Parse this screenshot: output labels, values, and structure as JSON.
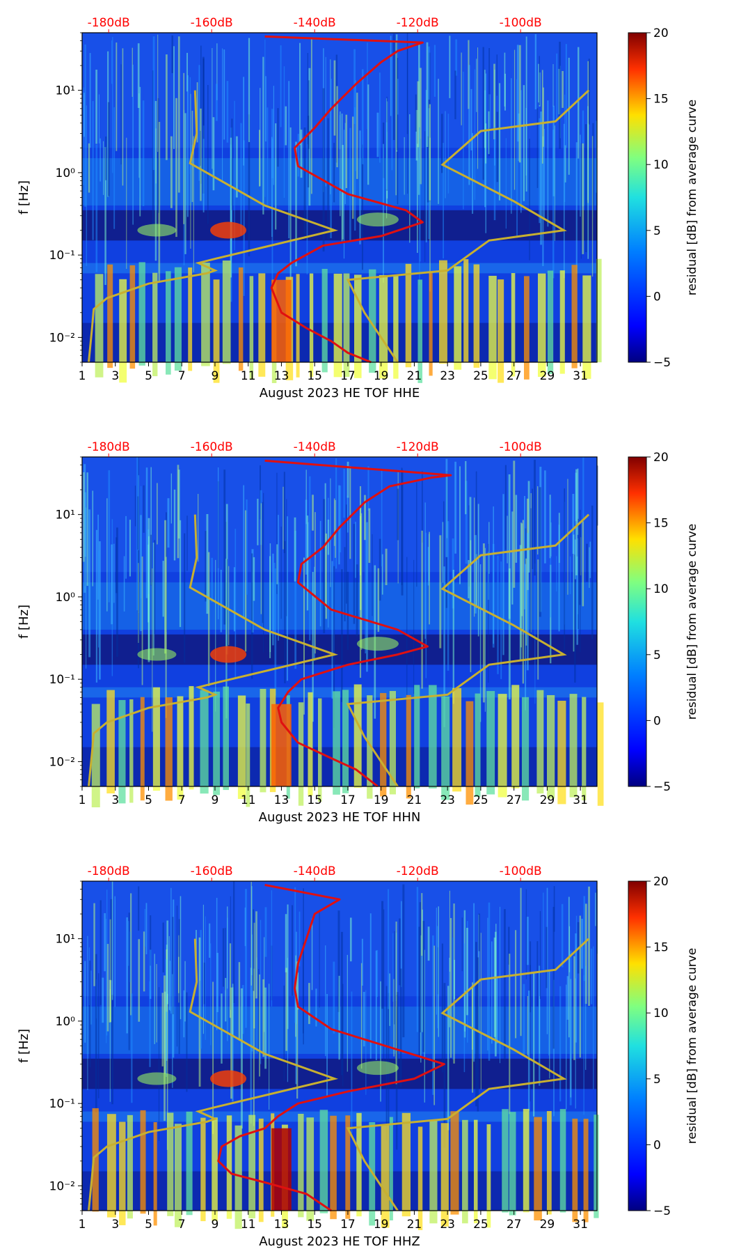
{
  "chart_data": [
    {
      "type": "heatmap",
      "title": "",
      "xlabel": "August 2023 HE TOF  HHE",
      "ylabel": "f [Hz]",
      "xlim": [
        1,
        32
      ],
      "ylim": [
        0.005,
        50
      ],
      "yscale": "log",
      "x_ticks": [
        "1",
        "3",
        "5",
        "7",
        "9",
        "11",
        "13",
        "15",
        "17",
        "19",
        "21",
        "23",
        "25",
        "27",
        "29",
        "31"
      ],
      "y_ticks": [
        "10⁻²",
        "10⁻¹",
        "10⁰",
        "10¹"
      ],
      "top_ticks": [
        "-180dB",
        "-160dB",
        "-140dB",
        "-120dB",
        "-100dB"
      ],
      "top_axis_color": "#ff0000",
      "colorbar": {
        "label": "residual [dB] from average curve",
        "min": -5,
        "max": 20,
        "ticks": [
          "−5",
          "0",
          "5",
          "10",
          "15",
          "20"
        ],
        "colormap": "jet"
      },
      "noise_models": {
        "color": "#c8b030",
        "low": [
          [
            1.4,
            0.005
          ],
          [
            1.6,
            0.013
          ],
          [
            1.7,
            0.022
          ],
          [
            2.5,
            0.03
          ],
          [
            5,
            0.045
          ],
          [
            8.5,
            0.06
          ],
          [
            9,
            0.065
          ],
          [
            8,
            0.08
          ],
          [
            9,
            0.09
          ],
          [
            16.2,
            0.2
          ],
          [
            12,
            0.4
          ],
          [
            7.5,
            1.3
          ],
          [
            7.9,
            3
          ],
          [
            7.8,
            10
          ]
        ],
        "high": [
          [
            20,
            0.005
          ],
          [
            18,
            0.02
          ],
          [
            17,
            0.05
          ],
          [
            23,
            0.065
          ],
          [
            25.5,
            0.15
          ],
          [
            30,
            0.2
          ],
          [
            27,
            0.45
          ],
          [
            22.7,
            1.25
          ],
          [
            25,
            3.2
          ],
          [
            29.5,
            4.2
          ],
          [
            31.5,
            10
          ]
        ]
      },
      "average_curve": {
        "color": "#e01010",
        "points": [
          [
            18.4,
            0.005
          ],
          [
            17,
            0.0065
          ],
          [
            16,
            0.009
          ],
          [
            14.5,
            0.013
          ],
          [
            13,
            0.02
          ],
          [
            12.4,
            0.04
          ],
          [
            12.8,
            0.06
          ],
          [
            13.6,
            0.08
          ],
          [
            15.5,
            0.13
          ],
          [
            19,
            0.17
          ],
          [
            21.5,
            0.25
          ],
          [
            20.5,
            0.35
          ],
          [
            17,
            0.55
          ],
          [
            14,
            1.2
          ],
          [
            13.8,
            2
          ],
          [
            15,
            3.5
          ],
          [
            16,
            6
          ],
          [
            17.5,
            12
          ],
          [
            19,
            22
          ],
          [
            20,
            30
          ],
          [
            21.5,
            38
          ],
          [
            12,
            45
          ]
        ]
      }
    },
    {
      "type": "heatmap",
      "title": "",
      "xlabel": "August 2023 HE TOF  HHN",
      "ylabel": "f [Hz]",
      "xlim": [
        1,
        32
      ],
      "ylim": [
        0.005,
        50
      ],
      "yscale": "log",
      "x_ticks": [
        "1",
        "3",
        "5",
        "7",
        "9",
        "11",
        "13",
        "15",
        "17",
        "19",
        "21",
        "23",
        "25",
        "27",
        "29",
        "31"
      ],
      "y_ticks": [
        "10⁻²",
        "10⁻¹",
        "10⁰",
        "10¹"
      ],
      "top_ticks": [
        "-180dB",
        "-160dB",
        "-140dB",
        "-120dB",
        "-100dB"
      ],
      "top_axis_color": "#ff0000",
      "colorbar": {
        "label": "residual [dB] from average curve",
        "min": -5,
        "max": 20,
        "ticks": [
          "−5",
          "0",
          "5",
          "10",
          "15",
          "20"
        ],
        "colormap": "jet"
      },
      "noise_models": {
        "color": "#c8b030",
        "low": [
          [
            1.4,
            0.005
          ],
          [
            1.6,
            0.013
          ],
          [
            1.7,
            0.022
          ],
          [
            2.5,
            0.03
          ],
          [
            5,
            0.045
          ],
          [
            8.5,
            0.06
          ],
          [
            9,
            0.065
          ],
          [
            8,
            0.08
          ],
          [
            9,
            0.09
          ],
          [
            16.2,
            0.2
          ],
          [
            12,
            0.4
          ],
          [
            7.5,
            1.3
          ],
          [
            7.9,
            3
          ],
          [
            7.8,
            10
          ]
        ],
        "high": [
          [
            20,
            0.005
          ],
          [
            18,
            0.02
          ],
          [
            17,
            0.05
          ],
          [
            23,
            0.065
          ],
          [
            25.5,
            0.15
          ],
          [
            30,
            0.2
          ],
          [
            27,
            0.45
          ],
          [
            22.7,
            1.25
          ],
          [
            25,
            3.2
          ],
          [
            29.5,
            4.2
          ],
          [
            31.5,
            10
          ]
        ]
      },
      "average_curve": {
        "color": "#e01010",
        "points": [
          [
            18.8,
            0.005
          ],
          [
            17.5,
            0.008
          ],
          [
            16,
            0.011
          ],
          [
            14,
            0.017
          ],
          [
            13,
            0.03
          ],
          [
            12.8,
            0.045
          ],
          [
            13.4,
            0.07
          ],
          [
            14.2,
            0.1
          ],
          [
            17,
            0.15
          ],
          [
            20,
            0.2
          ],
          [
            21.8,
            0.25
          ],
          [
            20,
            0.4
          ],
          [
            16,
            0.7
          ],
          [
            14,
            1.5
          ],
          [
            14.2,
            2.5
          ],
          [
            15.5,
            4
          ],
          [
            16.5,
            7
          ],
          [
            18,
            14
          ],
          [
            19.5,
            22
          ],
          [
            22,
            28
          ],
          [
            23.2,
            30
          ],
          [
            12,
            45
          ]
        ]
      }
    },
    {
      "type": "heatmap",
      "title": "",
      "xlabel": "August 2023 HE TOF  HHZ",
      "ylabel": "f [Hz]",
      "xlim": [
        1,
        32
      ],
      "ylim": [
        0.005,
        50
      ],
      "yscale": "log",
      "x_ticks": [
        "1",
        "3",
        "5",
        "7",
        "9",
        "11",
        "13",
        "15",
        "17",
        "19",
        "21",
        "23",
        "25",
        "27",
        "29",
        "31"
      ],
      "y_ticks": [
        "10⁻²",
        "10⁻¹",
        "10⁰",
        "10¹"
      ],
      "top_ticks": [
        "-180dB",
        "-160dB",
        "-140dB",
        "-120dB",
        "-100dB"
      ],
      "top_axis_color": "#ff0000",
      "colorbar": {
        "label": "residual [dB] from average curve",
        "min": -5,
        "max": 20,
        "ticks": [
          "−5",
          "0",
          "5",
          "10",
          "15",
          "20"
        ],
        "colormap": "jet"
      },
      "noise_models": {
        "color": "#c8b030",
        "low": [
          [
            1.4,
            0.005
          ],
          [
            1.6,
            0.013
          ],
          [
            1.7,
            0.022
          ],
          [
            2.5,
            0.03
          ],
          [
            5,
            0.045
          ],
          [
            8.5,
            0.06
          ],
          [
            9,
            0.065
          ],
          [
            8,
            0.08
          ],
          [
            9,
            0.09
          ],
          [
            16.2,
            0.2
          ],
          [
            12,
            0.4
          ],
          [
            7.5,
            1.3
          ],
          [
            7.9,
            3
          ],
          [
            7.8,
            10
          ]
        ],
        "high": [
          [
            20,
            0.005
          ],
          [
            18,
            0.02
          ],
          [
            17,
            0.05
          ],
          [
            23,
            0.065
          ],
          [
            25.5,
            0.15
          ],
          [
            30,
            0.2
          ],
          [
            27,
            0.45
          ],
          [
            22.7,
            1.25
          ],
          [
            25,
            3.2
          ],
          [
            29.5,
            4.2
          ],
          [
            31.5,
            10
          ]
        ]
      },
      "average_curve": {
        "color": "#e01010",
        "points": [
          [
            16,
            0.005
          ],
          [
            14.5,
            0.008
          ],
          [
            12,
            0.011
          ],
          [
            10,
            0.014
          ],
          [
            9.2,
            0.02
          ],
          [
            9.4,
            0.03
          ],
          [
            10.5,
            0.04
          ],
          [
            12,
            0.05
          ],
          [
            12.8,
            0.07
          ],
          [
            14,
            0.1
          ],
          [
            17,
            0.14
          ],
          [
            21,
            0.2
          ],
          [
            22.8,
            0.3
          ],
          [
            20,
            0.45
          ],
          [
            16,
            0.8
          ],
          [
            14,
            1.5
          ],
          [
            13.8,
            2.5
          ],
          [
            14,
            5
          ],
          [
            14.5,
            10
          ],
          [
            15,
            20
          ],
          [
            16.5,
            30
          ],
          [
            12,
            45
          ]
        ]
      }
    }
  ]
}
